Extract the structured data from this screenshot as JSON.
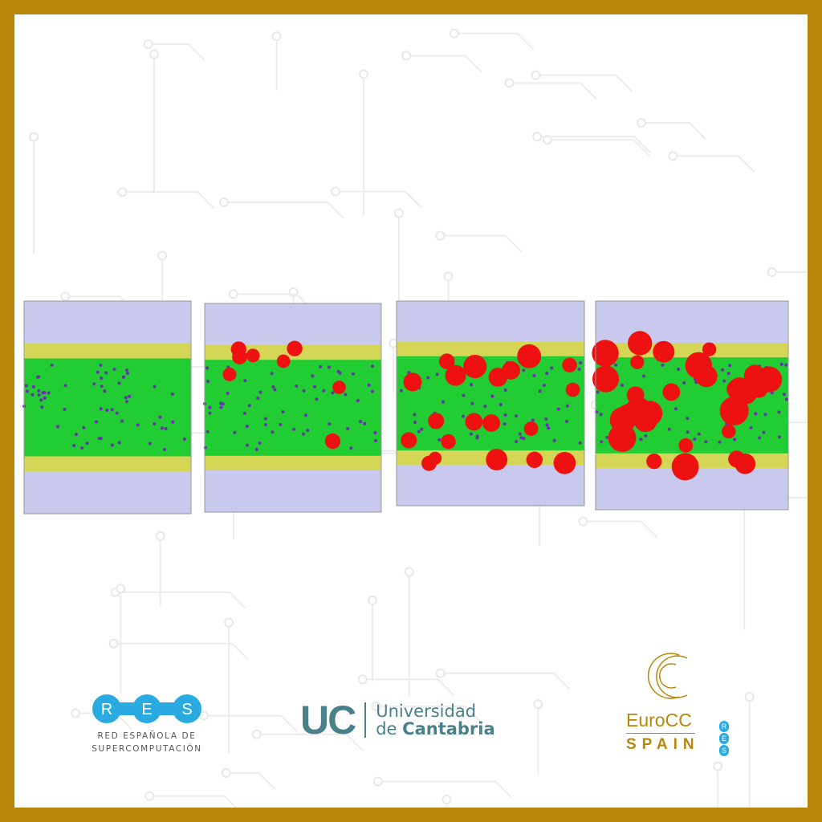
{
  "colors": {
    "border": "#b8860b",
    "res_blue": "#29abe2",
    "uc_teal": "#4a8089",
    "gold": "#b8860b",
    "solvent": "#8f8fd6",
    "interface": "#d8d830",
    "crystal": "#22cc33",
    "nucleus": "#ee1111"
  },
  "panels": [
    {
      "red_fraction": 0.0
    },
    {
      "red_fraction": 0.2
    },
    {
      "red_fraction": 0.5
    },
    {
      "red_fraction": 0.75
    }
  ],
  "logos": {
    "res": {
      "letters": [
        "R",
        "E",
        "S"
      ],
      "line1": "RED ESPAÑOLA DE",
      "line2": "SUPERCOMPUTACIÓN"
    },
    "uc": {
      "mark": "UC",
      "line1": "Universidad",
      "line2_prefix": "de ",
      "line2_bold": "Cantabria"
    },
    "eurocc": {
      "line1": "EuroCC",
      "line2": "SPAIN",
      "side_letters": [
        "R",
        "E",
        "S"
      ]
    }
  }
}
